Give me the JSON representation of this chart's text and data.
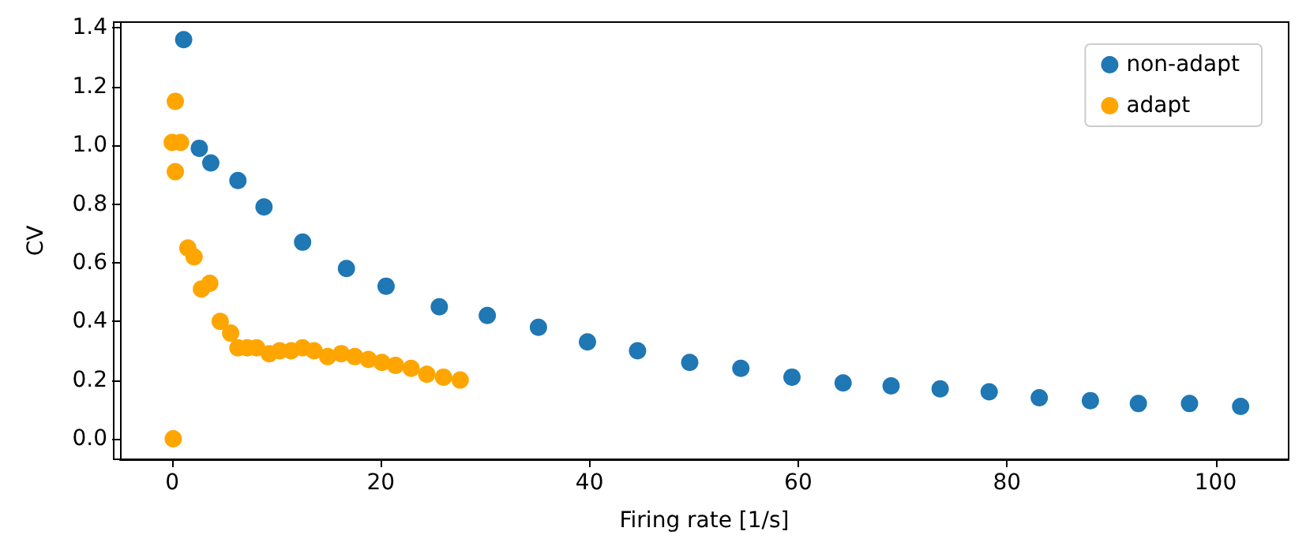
{
  "chart_data": {
    "type": "scatter",
    "xlabel": "Firing rate [1/s]",
    "ylabel": "CV",
    "xlim": [
      -5,
      107
    ],
    "ylim": [
      -0.07,
      1.42
    ],
    "xticks": [
      0,
      20,
      40,
      60,
      80,
      100
    ],
    "yticks": [
      {
        "value": 0,
        "label": "0.0"
      },
      {
        "value": 0.2,
        "label": "0.2"
      },
      {
        "value": 0.4,
        "label": "0.4"
      },
      {
        "value": 0.6,
        "label": "0.6"
      },
      {
        "value": 0.8,
        "label": "0.8"
      },
      {
        "value": 1.0,
        "label": "1.0"
      },
      {
        "value": 1.2,
        "label": "1.2"
      },
      {
        "value": 1.4,
        "label": "1.4"
      }
    ],
    "grid": false,
    "legend": "top right",
    "marker": "circle",
    "series": [
      {
        "name": "non-adapt",
        "color": "#1f77b4",
        "x": [
          1.1,
          2.6,
          3.7,
          6.3,
          8.8,
          12.5,
          16.7,
          20.5,
          25.6,
          30.2,
          35.1,
          39.8,
          44.6,
          49.6,
          54.5,
          59.4,
          64.3,
          68.9,
          73.6,
          78.3,
          83.1,
          88.0,
          92.6,
          97.5,
          102.4
        ],
        "values": [
          1.36,
          0.99,
          0.94,
          0.88,
          0.79,
          0.67,
          0.58,
          0.52,
          0.45,
          0.42,
          0.38,
          0.33,
          0.3,
          0.26,
          0.24,
          0.21,
          0.19,
          0.18,
          0.17,
          0.16,
          0.14,
          0.13,
          0.12,
          0.12,
          0.11
        ]
      },
      {
        "name": "adapt",
        "color": "#ffa500",
        "x": [
          0.3,
          0.0,
          0.8,
          0.3,
          0.1,
          1.5,
          2.1,
          2.8,
          3.6,
          4.6,
          5.6,
          6.3,
          7.2,
          8.1,
          9.3,
          10.3,
          11.4,
          12.5,
          13.6,
          14.9,
          16.2,
          17.5,
          18.8,
          20.1,
          21.4,
          22.9,
          24.4,
          26.0,
          27.6
        ],
        "values": [
          1.15,
          1.01,
          1.01,
          0.91,
          0.0,
          0.65,
          0.62,
          0.51,
          0.53,
          0.4,
          0.36,
          0.31,
          0.31,
          0.31,
          0.29,
          0.3,
          0.3,
          0.31,
          0.3,
          0.28,
          0.29,
          0.28,
          0.27,
          0.26,
          0.25,
          0.24,
          0.22,
          0.21,
          0.2
        ]
      }
    ]
  }
}
